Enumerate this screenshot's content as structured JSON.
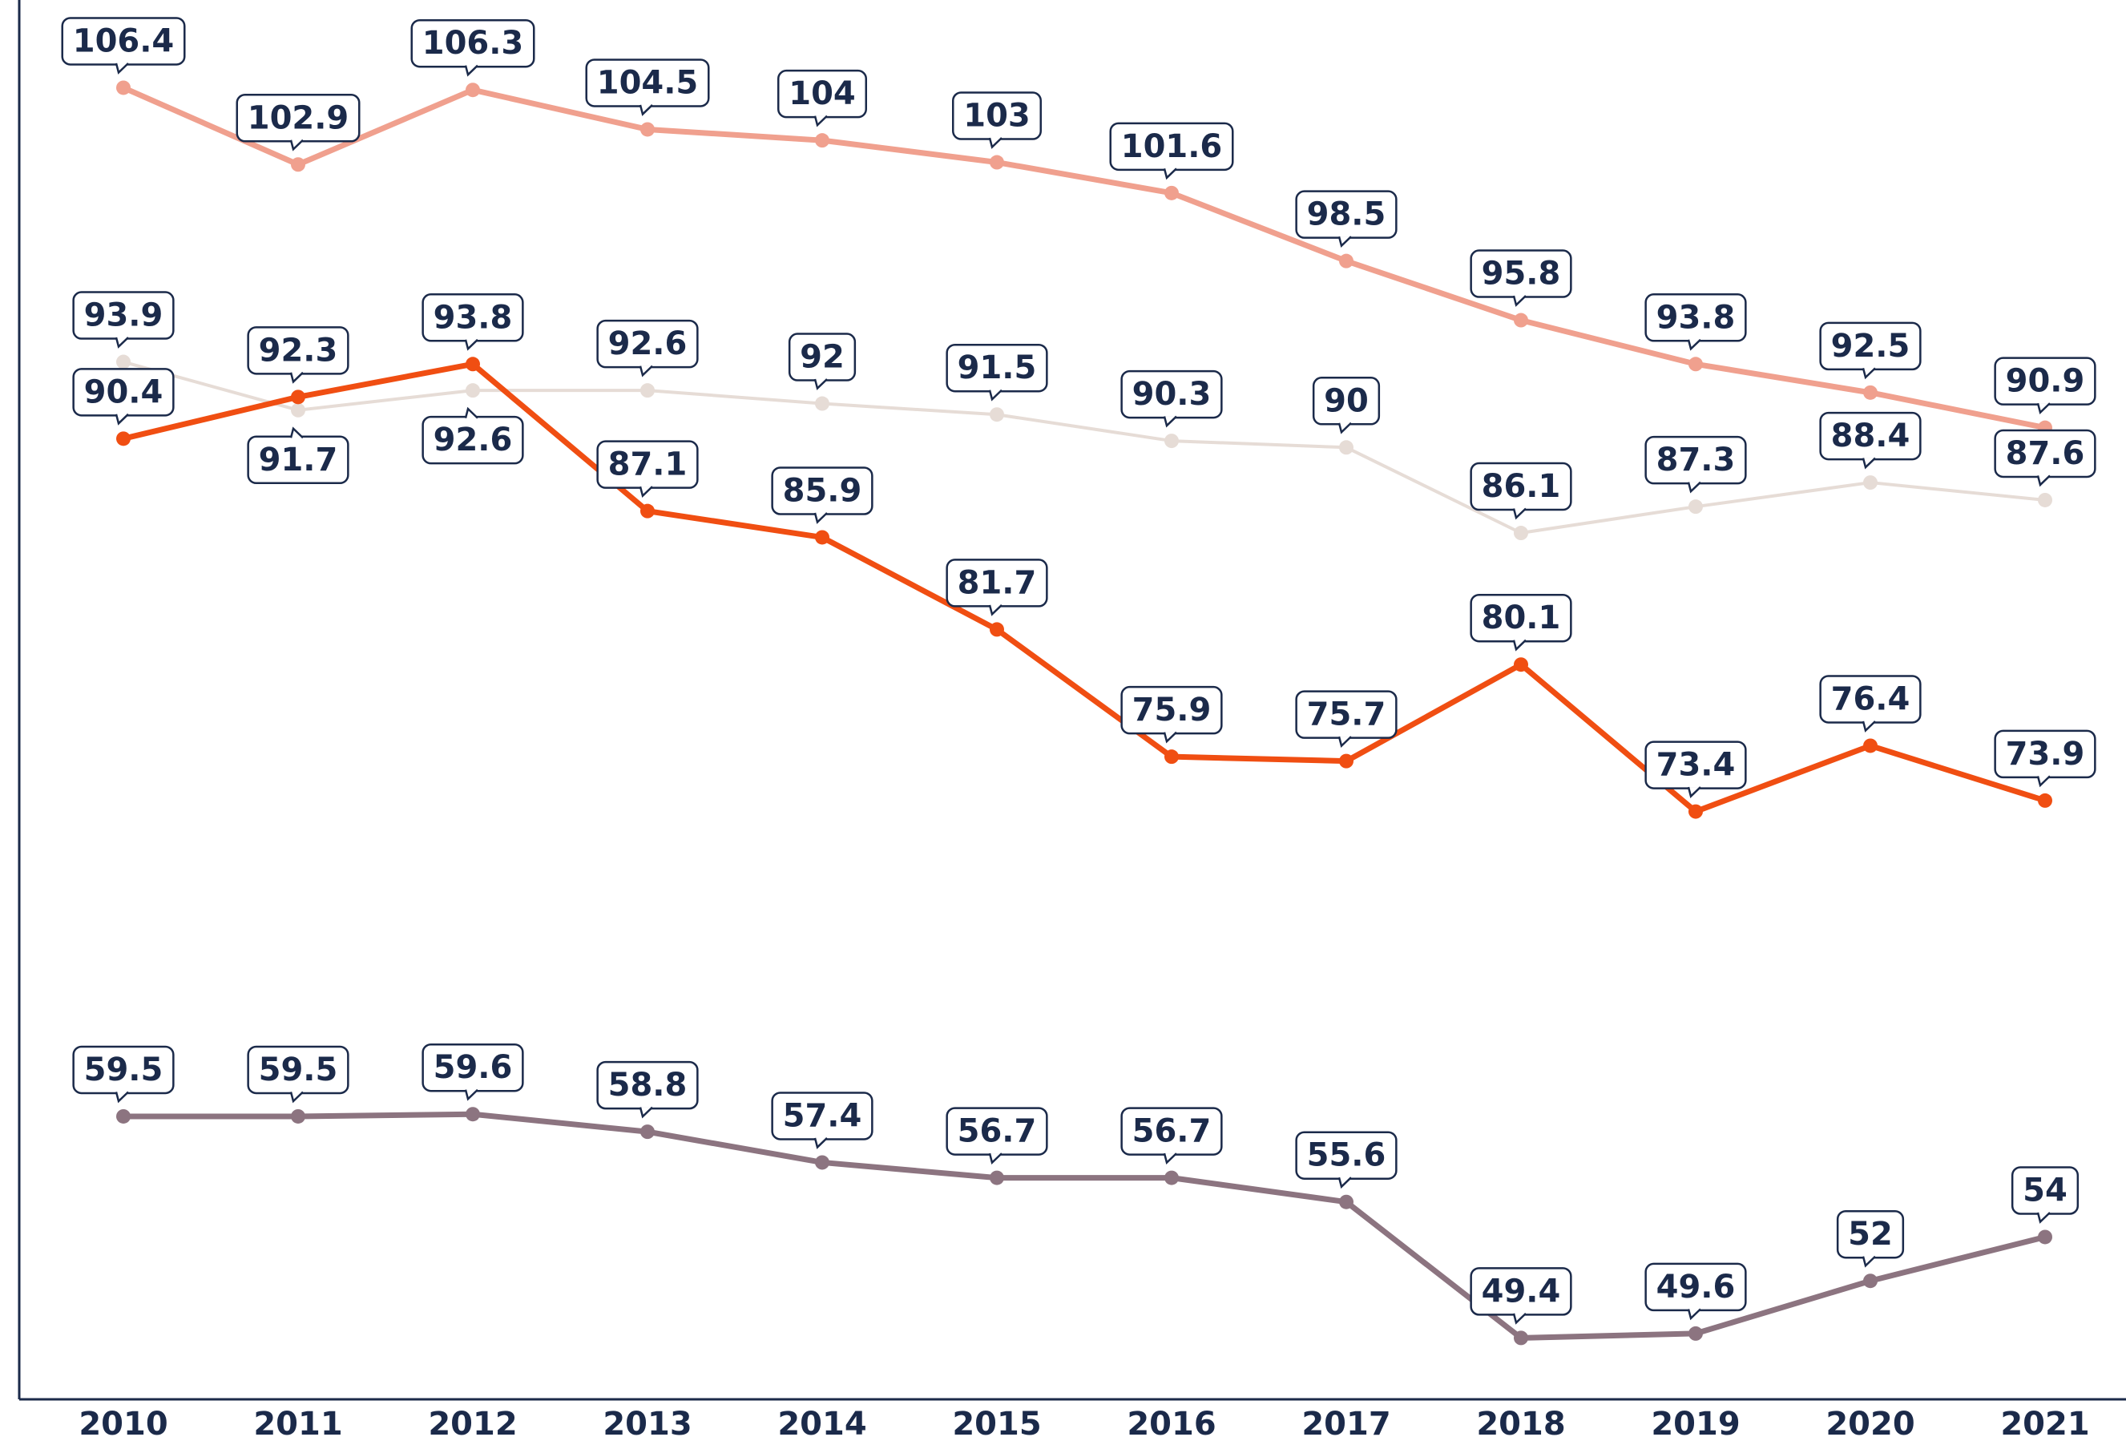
{
  "chart_data": {
    "type": "line",
    "categories": [
      "2010",
      "2011",
      "2012",
      "2013",
      "2014",
      "2015",
      "2016",
      "2017",
      "2018",
      "2019",
      "2020",
      "2021"
    ],
    "series": [
      {
        "color": "#f0a08e",
        "values": [
          106.4,
          102.9,
          106.3,
          104.5,
          104,
          103,
          101.6,
          98.5,
          95.8,
          93.8,
          92.5,
          90.9
        ]
      },
      {
        "color": "#e6dcd6",
        "values": [
          93.9,
          91.7,
          92.6,
          92.6,
          92,
          91.5,
          90.3,
          90,
          86.1,
          87.3,
          88.4,
          87.6
        ]
      },
      {
        "color": "#f04e12",
        "values": [
          90.4,
          92.3,
          93.8,
          87.1,
          85.9,
          81.7,
          75.9,
          75.7,
          80.1,
          73.4,
          76.4,
          73.9
        ]
      },
      {
        "color": "#8c7480",
        "values": [
          59.5,
          59.5,
          59.6,
          58.8,
          57.4,
          56.7,
          56.7,
          55.6,
          49.4,
          49.6,
          52,
          54
        ]
      }
    ],
    "ylim": [
      46.6,
      110.4
    ]
  }
}
